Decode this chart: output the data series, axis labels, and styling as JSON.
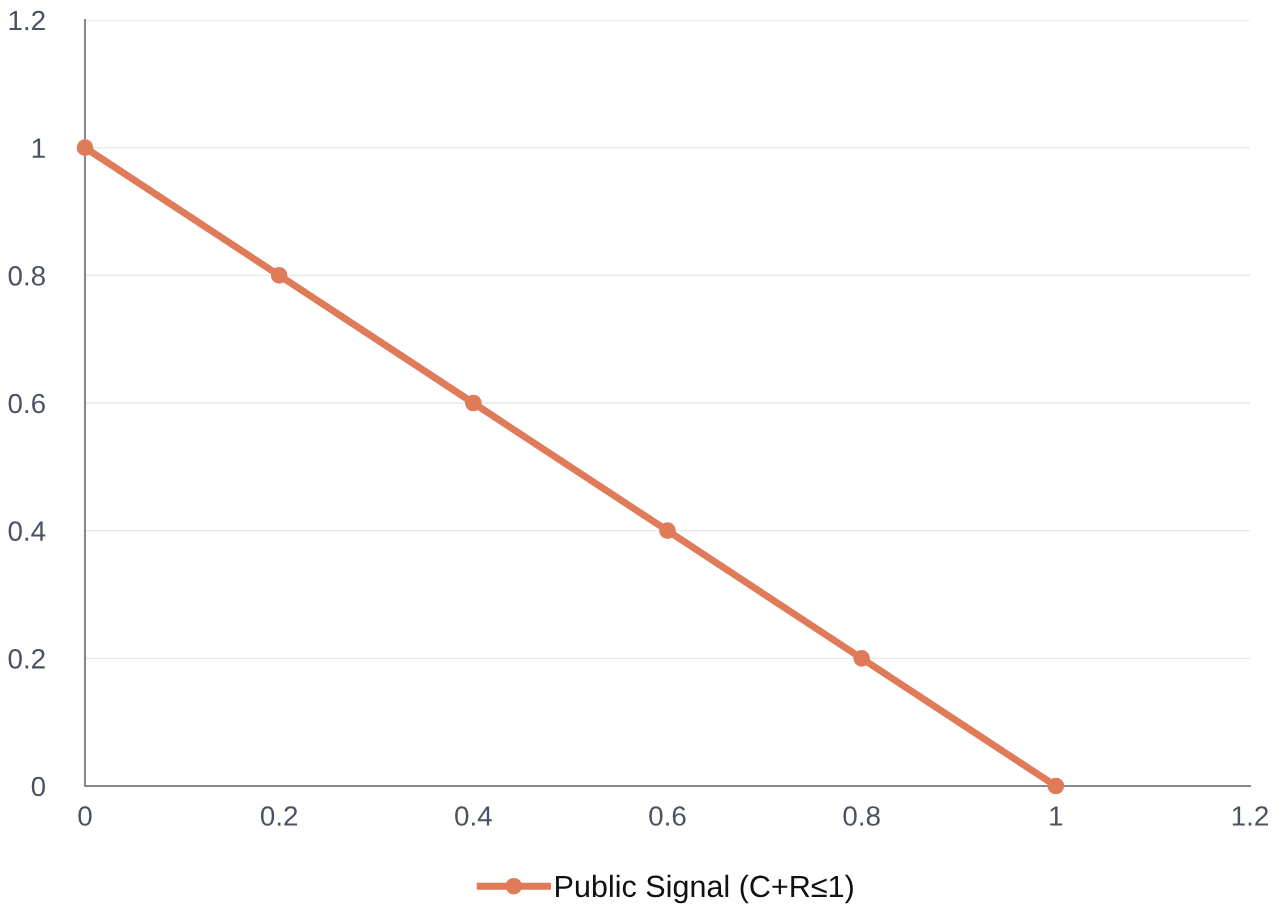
{
  "chart_data": {
    "type": "line",
    "x": [
      0,
      0.2,
      0.4,
      0.6,
      0.8,
      1
    ],
    "series": [
      {
        "name": "Public Signal (C+R≤1)",
        "color": "#e07b5a",
        "values": [
          1,
          0.8,
          0.6,
          0.4,
          0.2,
          0
        ]
      }
    ],
    "xlim": [
      0,
      1.2
    ],
    "xticks": [
      0,
      0.2,
      0.4,
      0.6,
      0.8,
      1,
      1.2
    ],
    "ylim": [
      0,
      1.2
    ],
    "yticks": [
      0,
      0.2,
      0.4,
      0.6,
      0.8,
      1,
      1.2
    ],
    "grid": "y",
    "legend": "bottom",
    "marker": "circle",
    "line_style": "solid"
  }
}
